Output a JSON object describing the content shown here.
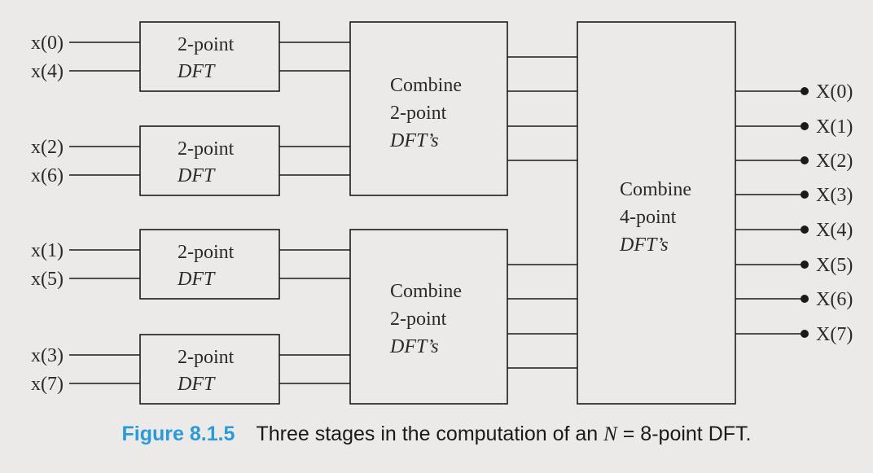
{
  "inputs": [
    "x(0)",
    "x(4)",
    "x(2)",
    "x(6)",
    "x(1)",
    "x(5)",
    "x(3)",
    "x(7)"
  ],
  "outputs": [
    "X(0)",
    "X(1)",
    "X(2)",
    "X(3)",
    "X(4)",
    "X(5)",
    "X(6)",
    "X(7)"
  ],
  "stage1": {
    "line1": "2-point",
    "line2": "DFT"
  },
  "stage2": {
    "line1": "Combine",
    "line2": "2-point",
    "line3": "DFT’s"
  },
  "stage3": {
    "line1": "Combine",
    "line2": "4-point",
    "line3": "DFT’s"
  },
  "caption": {
    "label": "Figure 8.1.5",
    "text_before": "Three stages in the computation of an ",
    "math": "N",
    "text_eq": " = 8",
    "text_after": "-point DFT."
  }
}
